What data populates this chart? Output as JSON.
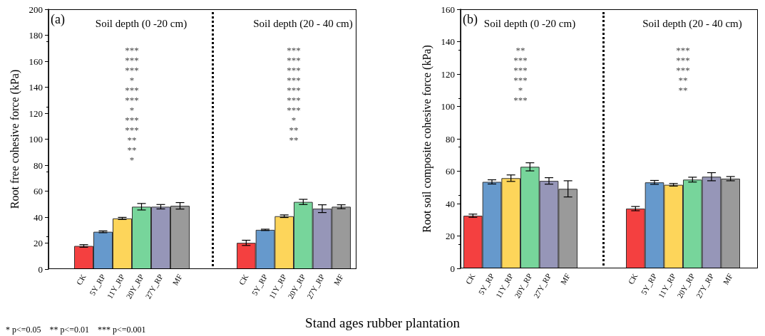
{
  "chart_data": [
    {
      "type": "bar",
      "title": "Soil depth (0 -20 cm)",
      "ylabel": "Root free cohesive force (kPa)",
      "categories": [
        "CK",
        "5Y_RP",
        "11Y_RP",
        "20Y_RP",
        "27Y_RP",
        "MF"
      ],
      "values": [
        17.8,
        28.7,
        39,
        48,
        48,
        48.7
      ],
      "errors": [
        1,
        0.7,
        0.8,
        2.5,
        1.7,
        2.5
      ],
      "colors": [
        "#f44040",
        "#6699cc",
        "#fdd55a",
        "#77d59b",
        "#9696b8",
        "#9a9a9a"
      ],
      "ylim": [
        0,
        200
      ],
      "yticks": [
        0,
        20,
        40,
        60,
        80,
        100,
        120,
        140,
        160,
        180,
        200
      ],
      "tick_labels": "xy",
      "annotations": [
        "(a)",
        "***",
        "***",
        "***",
        "*",
        "***",
        "***",
        "*",
        "***",
        "***",
        "**",
        "**",
        "*",
        "Stand ages rubber plantation",
        "* p<=0.05    ** p<=0.01    *** p<=0.001"
      ]
    },
    {
      "type": "bar",
      "title": "Soil depth (20 - 40 cm)",
      "categories": [
        "CK",
        "5Y_RP",
        "11Y_RP",
        "20Y_RP",
        "27Y_RP",
        "MF"
      ],
      "values": [
        20.2,
        30.2,
        40.7,
        51.7,
        46.5,
        48
      ],
      "errors": [
        2,
        0.5,
        1,
        2,
        3,
        1.5
      ],
      "colors": [
        "#f44040",
        "#6699cc",
        "#fdd55a",
        "#77d59b",
        "#9696b8",
        "#9a9a9a"
      ],
      "ylim": [
        0,
        200
      ],
      "yticks": [
        0,
        20,
        40,
        60,
        80,
        100,
        120,
        140,
        160,
        180,
        200
      ],
      "tick_labels": "x",
      "annotations": [
        "***",
        "***",
        "***",
        "***",
        "***",
        "***",
        "***",
        "*",
        "**",
        "**"
      ]
    },
    {
      "type": "bar",
      "title": "Soil depth (0 -20 cm)",
      "ylabel": "Root soil composite cohesive force (kPa)",
      "categories": [
        "CK",
        "5Y_RP",
        "11Y_RP",
        "20Y_RP",
        "27Y_RP",
        "MF"
      ],
      "values": [
        32.5,
        53.4,
        55.7,
        62.7,
        54,
        49.1
      ],
      "errors": [
        1,
        1.3,
        2,
        2.5,
        2,
        5
      ],
      "colors": [
        "#f44040",
        "#6699cc",
        "#fdd55a",
        "#77d59b",
        "#9696b8",
        "#9a9a9a"
      ],
      "ylim": [
        0,
        160
      ],
      "yticks": [
        0,
        20,
        40,
        60,
        80,
        100,
        120,
        140,
        160
      ],
      "tick_labels": "xy",
      "annotations": [
        "(b)",
        "**",
        "***",
        "***",
        "***",
        "*",
        "***"
      ]
    },
    {
      "type": "bar",
      "title": "Soil depth (20 - 40 cm)",
      "categories": [
        "CK",
        "5Y_RP",
        "11Y_RP",
        "20Y_RP",
        "27Y_RP",
        "MF"
      ],
      "values": [
        36.9,
        53.1,
        51.6,
        54.8,
        56.6,
        55.4
      ],
      "errors": [
        1.3,
        1.2,
        0.8,
        1.5,
        2.5,
        1.3
      ],
      "colors": [
        "#f44040",
        "#6699cc",
        "#fdd55a",
        "#77d59b",
        "#9696b8",
        "#9a9a9a"
      ],
      "ylim": [
        0,
        160
      ],
      "yticks": [
        0,
        20,
        40,
        60,
        80,
        100,
        120,
        140,
        160
      ],
      "tick_labels": "x",
      "annotations": [
        "***",
        "***",
        "***",
        "**",
        "**"
      ]
    }
  ]
}
